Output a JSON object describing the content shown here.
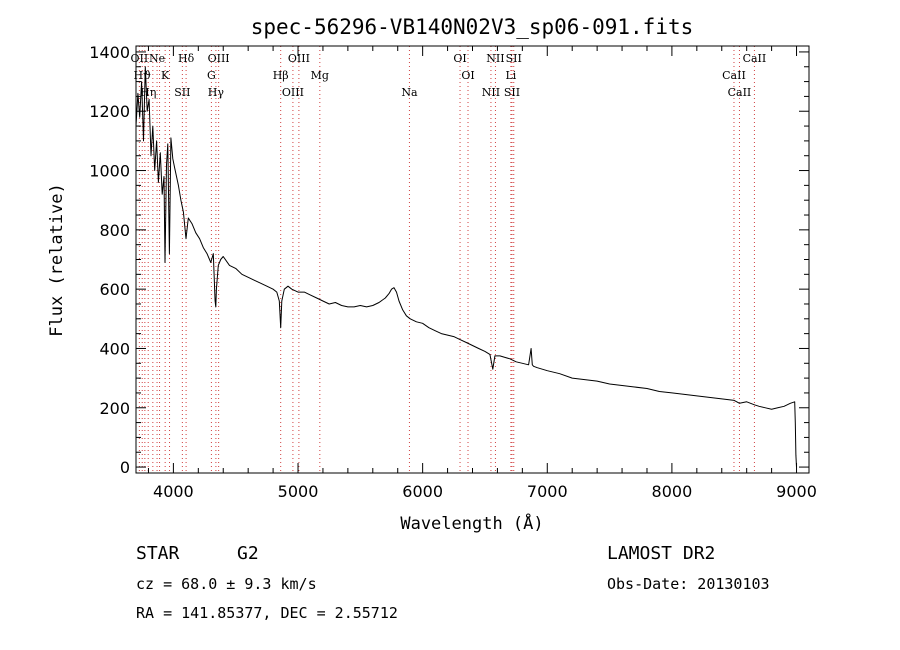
{
  "chart_data": {
    "type": "line",
    "title": "spec-56296-VB140N02V3_sp06-091.fits",
    "xlabel": "Wavelength (Å)",
    "ylabel": "Flux (relative)",
    "xlim": [
      3700,
      9100
    ],
    "ylim": [
      -20,
      1420
    ],
    "xticks": [
      4000,
      5000,
      6000,
      7000,
      8000,
      9000
    ],
    "yticks": [
      0,
      200,
      400,
      600,
      800,
      1000,
      1200,
      1400
    ],
    "grid": false,
    "line_color": "#000000",
    "marker_color": "#d04040",
    "series": [
      {
        "x": [
          3700,
          3715,
          3730,
          3745,
          3760,
          3775,
          3790,
          3805,
          3820,
          3835,
          3850,
          3865,
          3880,
          3895,
          3910,
          3925,
          3933,
          3945,
          3955,
          3968,
          3980,
          3995,
          4010,
          4025,
          4040,
          4060,
          4080,
          4101,
          4120,
          4150,
          4180,
          4210,
          4240,
          4270,
          4300,
          4320,
          4335,
          4340,
          4345,
          4360,
          4380,
          4400,
          4450,
          4500,
          4550,
          4600,
          4650,
          4700,
          4750,
          4800,
          4830,
          4850,
          4861,
          4870,
          4890,
          4920,
          4950,
          5000,
          5050,
          5100,
          5150,
          5200,
          5250,
          5300,
          5350,
          5400,
          5450,
          5500,
          5550,
          5600,
          5650,
          5700,
          5730,
          5750,
          5770,
          5790,
          5810,
          5840,
          5870,
          5900,
          5950,
          6000,
          6050,
          6100,
          6150,
          6200,
          6250,
          6300,
          6350,
          6400,
          6450,
          6500,
          6540,
          6563,
          6580,
          6620,
          6660,
          6700,
          6750,
          6800,
          6850,
          6870,
          6880,
          6890,
          6920,
          6960,
          7000,
          7100,
          7200,
          7300,
          7400,
          7500,
          7600,
          7700,
          7800,
          7900,
          8000,
          8100,
          8200,
          8300,
          8400,
          8500,
          8542,
          8600,
          8662,
          8700,
          8750,
          8800,
          8850,
          8900,
          8950,
          8985,
          8990,
          8995,
          9000
        ],
        "y": [
          1150,
          1260,
          1180,
          1300,
          1100,
          1350,
          1200,
          1240,
          1050,
          1150,
          1000,
          1100,
          960,
          1060,
          920,
          980,
          690,
          1020,
          1090,
          720,
          1110,
          1040,
          1010,
          980,
          950,
          900,
          860,
          770,
          840,
          820,
          790,
          770,
          740,
          720,
          690,
          720,
          560,
          540,
          600,
          680,
          700,
          710,
          680,
          670,
          650,
          640,
          630,
          620,
          610,
          600,
          590,
          560,
          470,
          560,
          600,
          610,
          600,
          590,
          590,
          580,
          570,
          560,
          550,
          555,
          545,
          540,
          540,
          545,
          540,
          545,
          555,
          570,
          585,
          600,
          605,
          590,
          560,
          530,
          510,
          500,
          490,
          485,
          470,
          460,
          450,
          445,
          440,
          430,
          420,
          410,
          400,
          390,
          380,
          330,
          375,
          375,
          370,
          365,
          355,
          350,
          345,
          400,
          345,
          340,
          335,
          330,
          325,
          315,
          300,
          295,
          290,
          280,
          275,
          270,
          265,
          255,
          250,
          245,
          240,
          235,
          230,
          225,
          215,
          220,
          210,
          205,
          200,
          195,
          200,
          205,
          215,
          220,
          150,
          40,
          0
        ]
      }
    ],
    "lines": [
      {
        "wavelength": 3727,
        "labels": [
          "OII"
        ]
      },
      {
        "wavelength": 3750,
        "labels": [
          "Hϑ"
        ]
      },
      {
        "wavelength": 3771,
        "labels": []
      },
      {
        "wavelength": 3798,
        "labels": [
          "Hη"
        ]
      },
      {
        "wavelength": 3835,
        "labels": []
      },
      {
        "wavelength": 3869,
        "labels": [
          "Ne"
        ]
      },
      {
        "wavelength": 3889,
        "labels": []
      },
      {
        "wavelength": 3934,
        "labels": [
          "K"
        ]
      },
      {
        "wavelength": 3969,
        "labels": []
      },
      {
        "wavelength": 4072,
        "labels": [
          "SII"
        ]
      },
      {
        "wavelength": 4102,
        "labels": [
          "Hδ"
        ]
      },
      {
        "wavelength": 4305,
        "labels": [
          "G"
        ]
      },
      {
        "wavelength": 4341,
        "labels": [
          "Hγ"
        ]
      },
      {
        "wavelength": 4363,
        "labels": [
          "OIII"
        ]
      },
      {
        "wavelength": 4861,
        "labels": [
          "Hβ"
        ]
      },
      {
        "wavelength": 4959,
        "labels": [
          "OIII"
        ]
      },
      {
        "wavelength": 5007,
        "labels": [
          "OIII"
        ]
      },
      {
        "wavelength": 5175,
        "labels": [
          "Mg"
        ]
      },
      {
        "wavelength": 5894,
        "labels": [
          "Na"
        ]
      },
      {
        "wavelength": 6300,
        "labels": [
          "OI"
        ]
      },
      {
        "wavelength": 6364,
        "labels": [
          "OI"
        ]
      },
      {
        "wavelength": 6548,
        "labels": [
          "NII"
        ]
      },
      {
        "wavelength": 6584,
        "labels": [
          "NII"
        ]
      },
      {
        "wavelength": 6708,
        "labels": [
          "Li"
        ]
      },
      {
        "wavelength": 6717,
        "labels": [
          "SII"
        ]
      },
      {
        "wavelength": 6731,
        "labels": [
          "SII"
        ]
      },
      {
        "wavelength": 8498,
        "labels": [
          "CaII"
        ]
      },
      {
        "wavelength": 8542,
        "labels": [
          "CaII"
        ]
      },
      {
        "wavelength": 8662,
        "labels": [
          "CaII"
        ]
      }
    ]
  },
  "info": {
    "class_label": "STAR",
    "subclass": "G2",
    "survey": "LAMOST DR2",
    "cz": "cz = 68.0 ± 9.3 km/s",
    "obs_date": "Obs-Date: 20130103",
    "coords": "RA = 141.85377, DEC =   2.55712"
  }
}
